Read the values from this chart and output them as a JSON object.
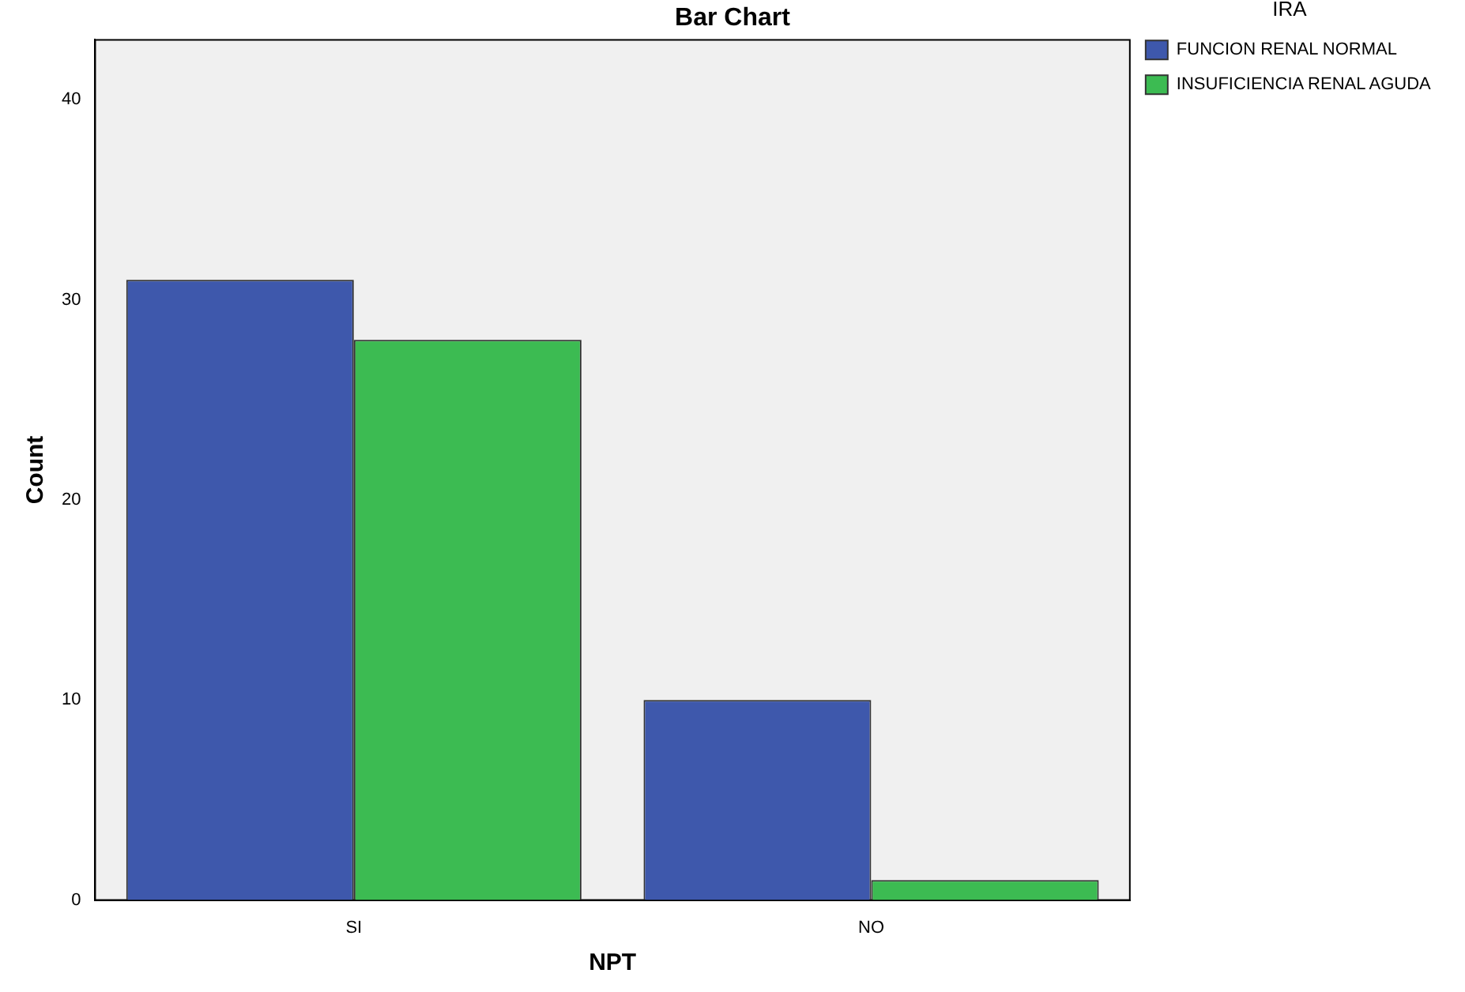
{
  "chart_data": {
    "type": "bar",
    "title": "Bar Chart",
    "xlabel": "NPT",
    "ylabel": "Count",
    "legend_title": "IRA",
    "categories": [
      "SI",
      "NO"
    ],
    "series": [
      {
        "name": "FUNCION RENAL NORMAL",
        "color": "#3e58ac",
        "values": [
          31,
          10
        ]
      },
      {
        "name": "INSUFICIENCIA RENAL AGUDA",
        "color": "#3cbb52",
        "values": [
          28,
          1
        ]
      }
    ],
    "ylim": [
      0,
      43
    ],
    "yticks": [
      0,
      10,
      20,
      30,
      40
    ],
    "grid": false,
    "legend": "top right"
  }
}
